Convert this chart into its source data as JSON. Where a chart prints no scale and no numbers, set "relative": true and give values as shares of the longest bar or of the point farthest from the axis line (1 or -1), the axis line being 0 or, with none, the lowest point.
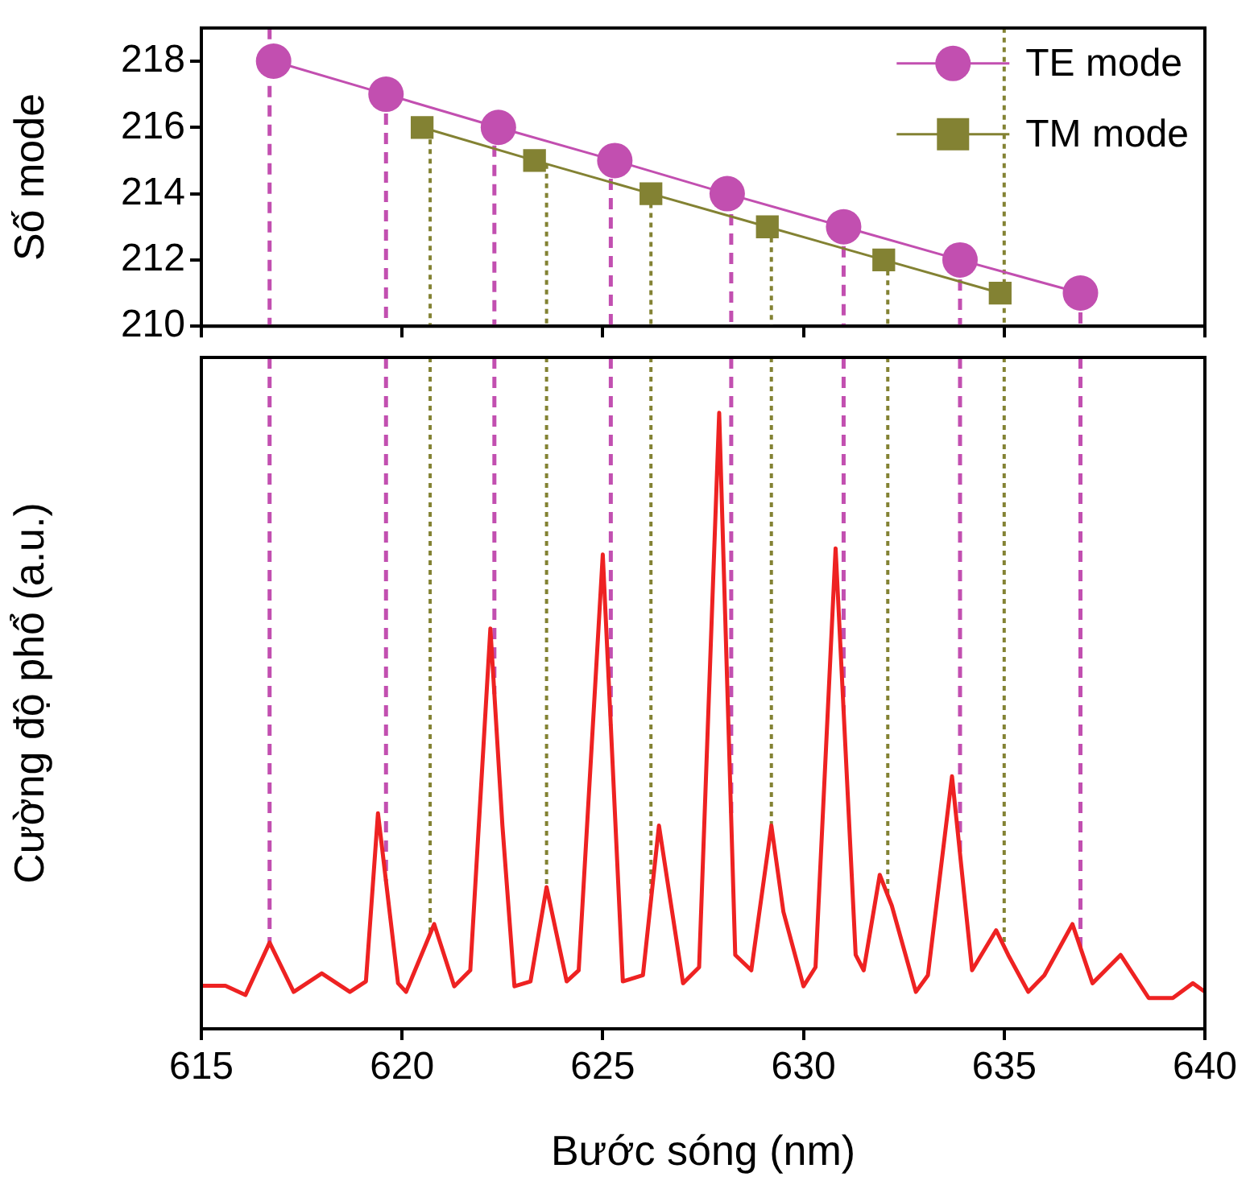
{
  "chart_data": [
    {
      "type": "line",
      "ylabel": "Số mode",
      "xlim": [
        615,
        640
      ],
      "xticks": [
        615,
        620,
        625,
        630,
        635,
        640
      ],
      "ylim": [
        210,
        219
      ],
      "yticks": [
        210,
        212,
        214,
        216,
        218
      ],
      "tick_labels": "y",
      "legend": "top right",
      "series": [
        {
          "name": "TE mode",
          "color": "#c24fb0",
          "marker": "circle",
          "x": [
            616.8,
            619.6,
            622.4,
            625.3,
            628.1,
            631.0,
            633.9,
            636.9
          ],
          "values": [
            218,
            217,
            216,
            215,
            214,
            213,
            212,
            211
          ]
        },
        {
          "name": "TM mode",
          "color": "#838233",
          "marker": "square",
          "x": [
            620.5,
            623.3,
            626.2,
            629.1,
            632.0,
            634.9
          ],
          "values": [
            216,
            215,
            214,
            213,
            212,
            211
          ]
        }
      ],
      "ref_lines": [
        {
          "axis": "x",
          "value": 616.7,
          "color": "#c24fb0",
          "line_style": "dashed"
        },
        {
          "axis": "x",
          "value": 619.6,
          "color": "#c24fb0",
          "line_style": "dashed"
        },
        {
          "axis": "x",
          "value": 622.3,
          "color": "#c24fb0",
          "line_style": "dashed"
        },
        {
          "axis": "x",
          "value": 625.2,
          "color": "#c24fb0",
          "line_style": "dashed"
        },
        {
          "axis": "x",
          "value": 628.2,
          "color": "#c24fb0",
          "line_style": "dashed"
        },
        {
          "axis": "x",
          "value": 631.0,
          "color": "#c24fb0",
          "line_style": "dashed"
        },
        {
          "axis": "x",
          "value": 633.9,
          "color": "#c24fb0",
          "line_style": "dashed"
        },
        {
          "axis": "x",
          "value": 636.9,
          "color": "#c24fb0",
          "line_style": "dashed"
        },
        {
          "axis": "x",
          "value": 620.7,
          "color": "#838233",
          "line_style": "dotted"
        },
        {
          "axis": "x",
          "value": 623.6,
          "color": "#838233",
          "line_style": "dotted"
        },
        {
          "axis": "x",
          "value": 626.2,
          "color": "#838233",
          "line_style": "dotted"
        },
        {
          "axis": "x",
          "value": 629.2,
          "color": "#838233",
          "line_style": "dotted"
        },
        {
          "axis": "x",
          "value": 632.1,
          "color": "#838233",
          "line_style": "dotted"
        },
        {
          "axis": "x",
          "value": 635.0,
          "color": "#838233",
          "line_style": "dotted"
        }
      ]
    },
    {
      "type": "line",
      "relative": true,
      "xlabel": "Bước sóng (nm)",
      "ylabel": "Cường độ phổ (a.u.)",
      "xlim": [
        615,
        640
      ],
      "xticks": [
        615,
        620,
        625,
        630,
        635,
        640
      ],
      "marker": "none",
      "series": [
        {
          "color": "#ee2222",
          "x": [
            615.0,
            615.6,
            616.1,
            616.7,
            617.3,
            618.0,
            618.7,
            619.1,
            619.4,
            619.9,
            620.1,
            620.8,
            621.3,
            621.7,
            622.2,
            622.5,
            622.8,
            623.2,
            623.6,
            624.1,
            624.4,
            625.0,
            625.5,
            626.0,
            626.4,
            627.0,
            627.4,
            627.9,
            628.3,
            628.7,
            629.2,
            629.5,
            630.0,
            630.3,
            630.8,
            631.3,
            631.5,
            631.9,
            632.2,
            632.8,
            633.1,
            633.7,
            634.2,
            634.8,
            635.1,
            635.6,
            636.0,
            636.7,
            637.2,
            637.9,
            638.6,
            639.2,
            639.7,
            640.0
          ],
          "values": [
            0.07,
            0.07,
            0.055,
            0.14,
            0.06,
            0.09,
            0.06,
            0.077,
            0.35,
            0.074,
            0.06,
            0.17,
            0.069,
            0.095,
            0.65,
            0.33,
            0.069,
            0.077,
            0.23,
            0.077,
            0.095,
            0.77,
            0.077,
            0.087,
            0.33,
            0.074,
            0.1,
            1,
            0.12,
            0.095,
            0.33,
            0.19,
            0.069,
            0.1,
            0.78,
            0.12,
            0.095,
            0.25,
            0.2,
            0.06,
            0.087,
            0.41,
            0.095,
            0.16,
            0.12,
            0.06,
            0.087,
            0.17,
            0.074,
            0.12,
            0.05,
            0.05,
            0.074,
            0.06
          ]
        }
      ],
      "ref_lines": [
        {
          "axis": "x",
          "value": 616.7,
          "color": "#c24fb0",
          "line_style": "dashed"
        },
        {
          "axis": "x",
          "value": 619.6,
          "color": "#c24fb0",
          "line_style": "dashed"
        },
        {
          "axis": "x",
          "value": 622.3,
          "color": "#c24fb0",
          "line_style": "dashed"
        },
        {
          "axis": "x",
          "value": 625.2,
          "color": "#c24fb0",
          "line_style": "dashed"
        },
        {
          "axis": "x",
          "value": 628.2,
          "color": "#c24fb0",
          "line_style": "dashed"
        },
        {
          "axis": "x",
          "value": 631.0,
          "color": "#c24fb0",
          "line_style": "dashed"
        },
        {
          "axis": "x",
          "value": 633.9,
          "color": "#c24fb0",
          "line_style": "dashed"
        },
        {
          "axis": "x",
          "value": 636.9,
          "color": "#c24fb0",
          "line_style": "dashed"
        },
        {
          "axis": "x",
          "value": 620.7,
          "color": "#838233",
          "line_style": "dotted"
        },
        {
          "axis": "x",
          "value": 623.6,
          "color": "#838233",
          "line_style": "dotted"
        },
        {
          "axis": "x",
          "value": 626.2,
          "color": "#838233",
          "line_style": "dotted"
        },
        {
          "axis": "x",
          "value": 629.2,
          "color": "#838233",
          "line_style": "dotted"
        },
        {
          "axis": "x",
          "value": 632.1,
          "color": "#838233",
          "line_style": "dotted"
        },
        {
          "axis": "x",
          "value": 635.0,
          "color": "#838233",
          "line_style": "dotted"
        }
      ]
    }
  ]
}
